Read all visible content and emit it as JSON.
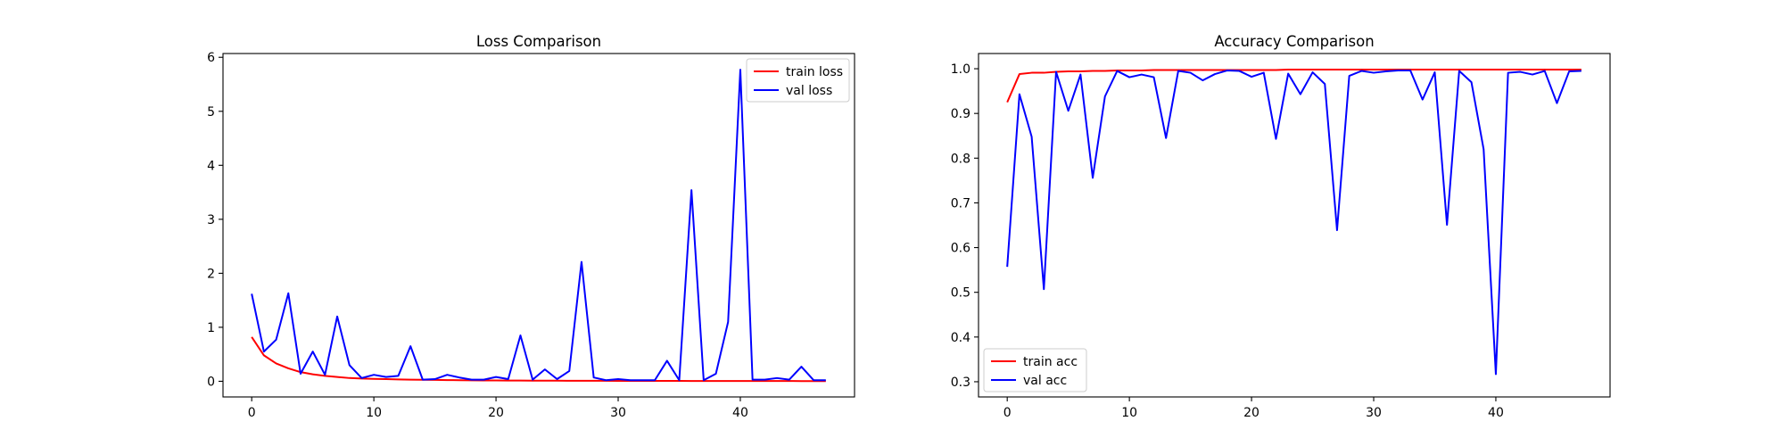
{
  "chart_data": [
    {
      "type": "line",
      "title": "Loss Comparison",
      "xlabel": "",
      "ylabel": "",
      "xlim": [
        -2.35,
        49.35
      ],
      "ylim": [
        -0.29,
        6.07
      ],
      "xticks": [
        0,
        10,
        20,
        30,
        40
      ],
      "yticks": [
        0,
        1,
        2,
        3,
        4,
        5,
        6
      ],
      "grid": false,
      "legend_position": "top-right",
      "x": [
        0,
        1,
        2,
        3,
        4,
        5,
        6,
        7,
        8,
        9,
        10,
        11,
        12,
        13,
        14,
        15,
        16,
        17,
        18,
        19,
        20,
        21,
        22,
        23,
        24,
        25,
        26,
        27,
        28,
        29,
        30,
        31,
        32,
        33,
        34,
        35,
        36,
        37,
        38,
        39,
        40,
        41,
        42,
        43,
        44,
        45,
        46,
        47
      ],
      "series": [
        {
          "name": "train loss",
          "color": "#ff0000",
          "values": [
            0.82,
            0.48,
            0.33,
            0.24,
            0.17,
            0.13,
            0.1,
            0.08,
            0.06,
            0.05,
            0.045,
            0.04,
            0.035,
            0.03,
            0.028,
            0.025,
            0.022,
            0.02,
            0.018,
            0.016,
            0.015,
            0.014,
            0.013,
            0.012,
            0.011,
            0.011,
            0.01,
            0.01,
            0.009,
            0.009,
            0.008,
            0.008,
            0.008,
            0.007,
            0.007,
            0.007,
            0.006,
            0.006,
            0.006,
            0.006,
            0.005,
            0.005,
            0.005,
            0.005,
            0.005,
            0.004,
            0.004,
            0.004
          ]
        },
        {
          "name": "val loss",
          "color": "#0000ff",
          "values": [
            1.62,
            0.55,
            0.77,
            1.63,
            0.14,
            0.55,
            0.12,
            1.2,
            0.3,
            0.06,
            0.12,
            0.08,
            0.1,
            0.65,
            0.03,
            0.04,
            0.12,
            0.07,
            0.03,
            0.03,
            0.08,
            0.04,
            0.85,
            0.03,
            0.22,
            0.04,
            0.19,
            2.21,
            0.07,
            0.02,
            0.04,
            0.02,
            0.02,
            0.02,
            0.38,
            0.02,
            3.54,
            0.02,
            0.14,
            1.1,
            5.77,
            0.03,
            0.03,
            0.06,
            0.03,
            0.27,
            0.02,
            0.02
          ]
        }
      ]
    },
    {
      "type": "line",
      "title": "Accuracy Comparison",
      "xlabel": "",
      "ylabel": "",
      "xlim": [
        -2.35,
        49.35
      ],
      "ylim": [
        0.266,
        1.034
      ],
      "xticks": [
        0,
        10,
        20,
        30,
        40
      ],
      "yticks": [
        0.3,
        0.4,
        0.5,
        0.6,
        0.7,
        0.8,
        0.9,
        1.0
      ],
      "grid": false,
      "legend_position": "bottom-left",
      "x": [
        0,
        1,
        2,
        3,
        4,
        5,
        6,
        7,
        8,
        9,
        10,
        11,
        12,
        13,
        14,
        15,
        16,
        17,
        18,
        19,
        20,
        21,
        22,
        23,
        24,
        25,
        26,
        27,
        28,
        29,
        30,
        31,
        32,
        33,
        34,
        35,
        36,
        37,
        38,
        39,
        40,
        41,
        42,
        43,
        44,
        45,
        46,
        47
      ],
      "series": [
        {
          "name": "train acc",
          "color": "#ff0000",
          "values": [
            0.925,
            0.988,
            0.991,
            0.991,
            0.993,
            0.994,
            0.994,
            0.995,
            0.995,
            0.996,
            0.996,
            0.996,
            0.997,
            0.997,
            0.997,
            0.997,
            0.997,
            0.997,
            0.997,
            0.997,
            0.997,
            0.997,
            0.997,
            0.998,
            0.998,
            0.998,
            0.998,
            0.998,
            0.998,
            0.998,
            0.998,
            0.998,
            0.998,
            0.998,
            0.998,
            0.998,
            0.998,
            0.998,
            0.998,
            0.998,
            0.998,
            0.998,
            0.998,
            0.998,
            0.998,
            0.998,
            0.998,
            0.998
          ]
        },
        {
          "name": "val acc",
          "color": "#0000ff",
          "values": [
            0.557,
            0.943,
            0.848,
            0.507,
            0.993,
            0.906,
            0.987,
            0.756,
            0.938,
            0.995,
            0.981,
            0.987,
            0.981,
            0.845,
            0.995,
            0.991,
            0.974,
            0.988,
            0.996,
            0.995,
            0.982,
            0.991,
            0.843,
            0.989,
            0.943,
            0.992,
            0.966,
            0.639,
            0.984,
            0.995,
            0.991,
            0.994,
            0.996,
            0.996,
            0.931,
            0.992,
            0.651,
            0.995,
            0.97,
            0.82,
            0.317,
            0.991,
            0.993,
            0.987,
            0.995,
            0.923,
            0.994,
            0.995
          ]
        }
      ]
    }
  ]
}
